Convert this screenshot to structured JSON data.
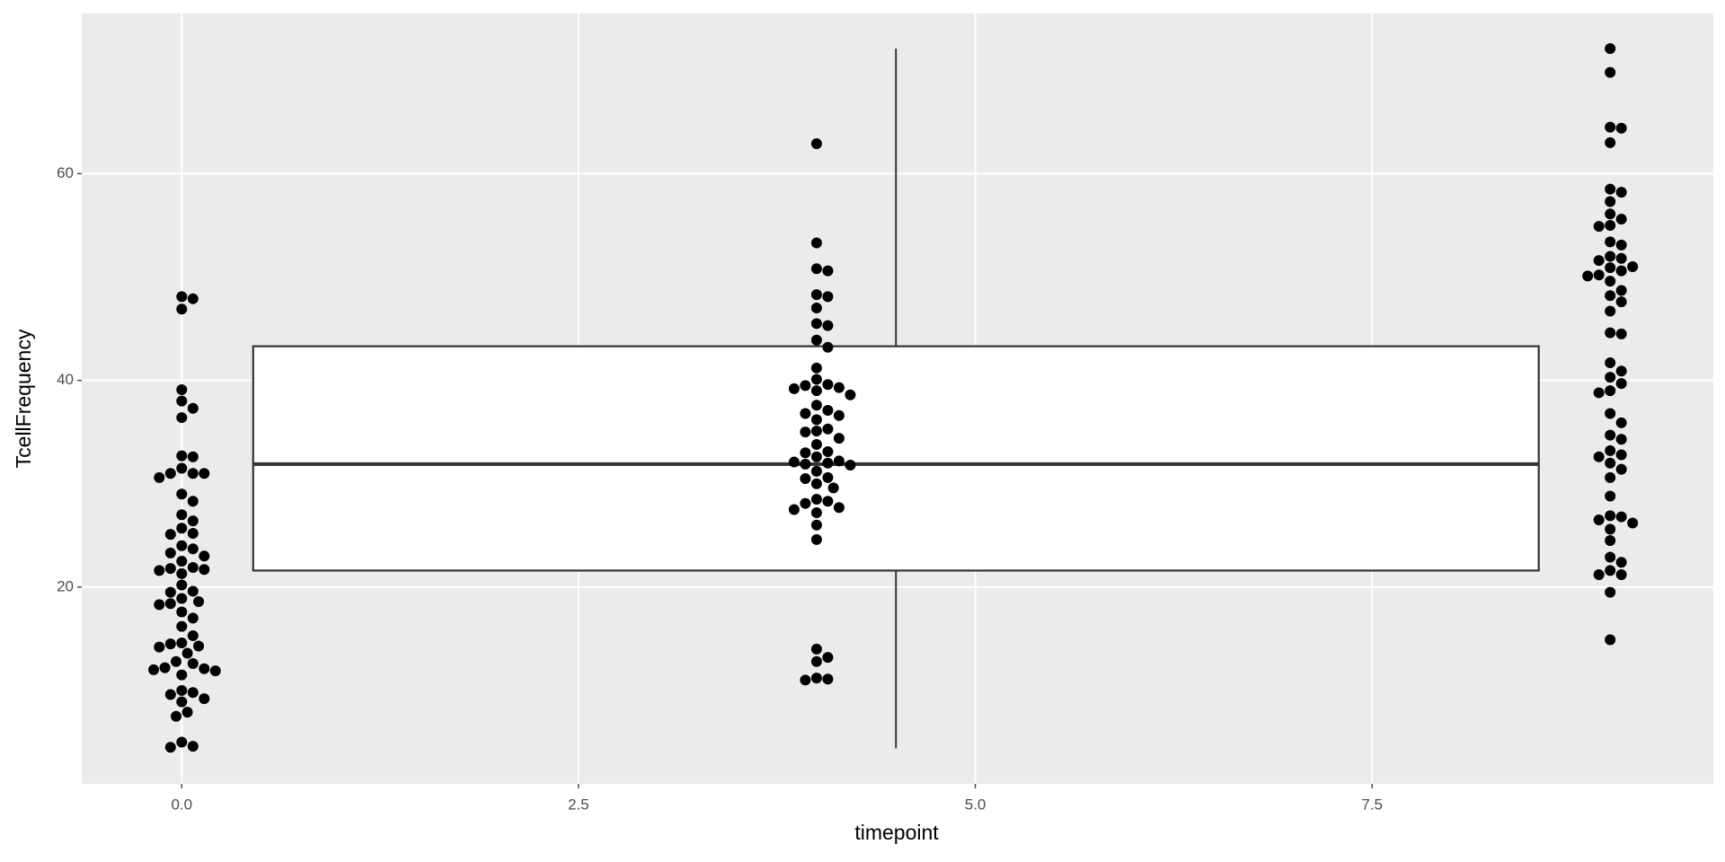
{
  "chart_data": {
    "type": "boxplot-beeswarm",
    "x_label": "timepoint",
    "y_label": "TcellFrequency",
    "xlim": [
      -0.63,
      9.65
    ],
    "ylim": [
      0.96,
      75.5
    ],
    "xticks": [
      {
        "value": 0,
        "label": "0.0"
      },
      2.5,
      {
        "value": 5,
        "label": "5.0"
      },
      7.5
    ],
    "yticks": [
      20,
      40,
      60
    ],
    "grid": true,
    "point_color": "#000000",
    "box_fill": "#ffffff",
    "box_line": "#333333",
    "box": {
      "x": 4.5,
      "whisker_low": 4.4,
      "q1": 21.6,
      "median": 31.9,
      "q3": 43.3,
      "whisker_high": 72.1
    },
    "series": [
      {
        "x": 0,
        "values": [
          48.1,
          47.9,
          46.9,
          39.1,
          38.0,
          37.3,
          36.4,
          32.7,
          32.6,
          31.5,
          31.0,
          31.0,
          31.0,
          30.6,
          29.0,
          28.3,
          27.0,
          26.4,
          25.7,
          25.2,
          25.1,
          24.0,
          23.7,
          23.3,
          23.0,
          22.5,
          21.9,
          21.8,
          21.7,
          21.6,
          21.3,
          20.2,
          19.6,
          19.5,
          18.9,
          18.6,
          18.4,
          18.3,
          17.6,
          17.0,
          16.2,
          15.3,
          14.6,
          14.5,
          14.3,
          14.2,
          13.6,
          12.8,
          12.6,
          12.2,
          12.1,
          12.0,
          11.9,
          11.5,
          10.0,
          9.8,
          9.6,
          9.2,
          8.9,
          7.9,
          7.5,
          5.0,
          4.6,
          4.5
        ]
      },
      {
        "x": 4,
        "values": [
          62.9,
          53.3,
          50.8,
          50.6,
          48.3,
          48.1,
          47.0,
          45.5,
          45.3,
          43.9,
          43.2,
          41.2,
          40.1,
          39.6,
          39.5,
          39.3,
          39.2,
          39.0,
          38.6,
          37.6,
          37.1,
          36.8,
          36.6,
          36.2,
          35.3,
          35.1,
          35.0,
          34.4,
          33.8,
          33.1,
          33.0,
          32.6,
          32.2,
          32.1,
          32.0,
          31.9,
          31.8,
          31.2,
          30.6,
          30.5,
          30.0,
          29.6,
          28.5,
          28.3,
          28.1,
          27.7,
          27.5,
          27.2,
          26.0,
          24.6,
          14.0,
          13.2,
          12.8,
          11.2,
          11.1,
          11.0
        ]
      },
      {
        "x": 9,
        "values": [
          72.1,
          69.8,
          64.5,
          64.4,
          63.0,
          58.5,
          58.2,
          57.3,
          56.1,
          55.6,
          55.0,
          54.9,
          53.4,
          53.1,
          52.0,
          51.8,
          51.6,
          51.0,
          50.9,
          50.6,
          50.2,
          50.1,
          49.6,
          48.7,
          48.2,
          47.6,
          46.7,
          44.6,
          44.5,
          41.7,
          40.9,
          40.3,
          39.7,
          39.0,
          38.8,
          36.8,
          35.9,
          34.7,
          34.3,
          33.2,
          32.8,
          32.6,
          32.0,
          31.4,
          30.6,
          28.8,
          26.9,
          26.8,
          26.5,
          26.2,
          25.6,
          24.5,
          22.9,
          22.4,
          21.6,
          21.2,
          21.2,
          19.5,
          14.9
        ]
      }
    ]
  }
}
